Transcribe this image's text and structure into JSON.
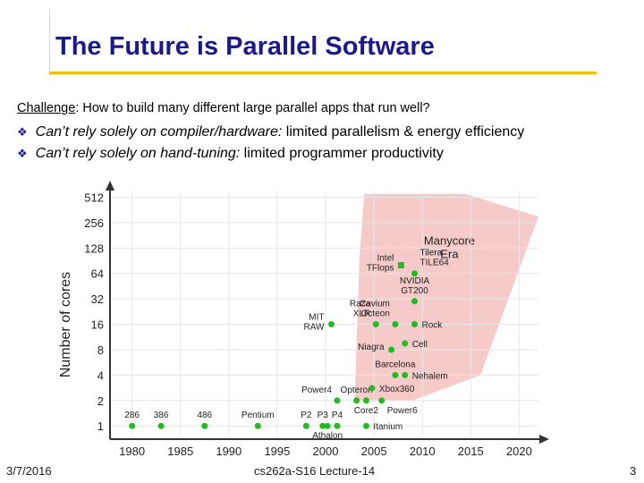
{
  "slide": {
    "title": "The Future is Parallel Software",
    "challenge_label": "Challenge",
    "challenge_text": ": How to build many different large parallel apps that run well?",
    "bullets": [
      {
        "italic": "Can’t rely solely on compiler/hardware:",
        "rest": " limited parallelism & energy efficiency"
      },
      {
        "italic": "Can’t rely solely on hand-tuning:",
        "rest": " limited programmer productivity"
      }
    ],
    "footer_date": "3/7/2016",
    "footer_course": "cs262a-S16 Lecture-14",
    "footer_page": "3"
  },
  "colors": {
    "title": "#1a1a8c",
    "rule": "#f0c000",
    "point": "#22bb22",
    "region": "#f4b8b8"
  },
  "chart_data": {
    "type": "scatter",
    "ylabel": "Number of cores",
    "xlabel": "",
    "y_scale": "log2",
    "xlim": [
      1978,
      2022
    ],
    "ylim": [
      0.75,
      600
    ],
    "xticks": [
      1980,
      1985,
      1990,
      1995,
      2000,
      2005,
      2010,
      2015,
      2020
    ],
    "yticks": [
      1,
      2,
      4,
      8,
      16,
      32,
      64,
      128,
      256,
      512
    ],
    "region_label": [
      "Manycore",
      "Era"
    ],
    "points": [
      {
        "x": 1980,
        "y": 1,
        "labels": [
          "286"
        ],
        "anchor": "above"
      },
      {
        "x": 1983,
        "y": 1,
        "labels": [
          "386"
        ],
        "anchor": "above"
      },
      {
        "x": 1987.5,
        "y": 1,
        "labels": [
          "486"
        ],
        "anchor": "above"
      },
      {
        "x": 1993,
        "y": 1,
        "labels": [
          "Pentium"
        ],
        "anchor": "above"
      },
      {
        "x": 1998,
        "y": 1,
        "labels": [
          "P2"
        ],
        "anchor": "above"
      },
      {
        "x": 1999.7,
        "y": 1,
        "labels": [
          "P3"
        ],
        "anchor": "above"
      },
      {
        "x": 2000.2,
        "y": 1,
        "labels": [
          "Athalon"
        ],
        "anchor": "below"
      },
      {
        "x": 2001.2,
        "y": 1,
        "labels": [
          "P4"
        ],
        "anchor": "above"
      },
      {
        "x": 2004.2,
        "y": 1,
        "labels": [
          "Itanium"
        ],
        "anchor": "right"
      },
      {
        "x": 2001.2,
        "y": 2,
        "labels": [
          "Power4"
        ],
        "anchor": "above-left"
      },
      {
        "x": 2003.2,
        "y": 2,
        "labels": [
          "Opteron"
        ],
        "anchor": "above"
      },
      {
        "x": 2004.2,
        "y": 2,
        "labels": [
          "Core2"
        ],
        "anchor": "below"
      },
      {
        "x": 2005.8,
        "y": 2,
        "labels": [
          "Power6"
        ],
        "anchor": "below-right"
      },
      {
        "x": 2004.8,
        "y": 2.8,
        "labels": [
          "Xbox360"
        ],
        "anchor": "right"
      },
      {
        "x": 2007.2,
        "y": 4,
        "labels": [
          "Barcelona"
        ],
        "anchor": "above"
      },
      {
        "x": 2008.2,
        "y": 4,
        "labels": [
          "Nehalem"
        ],
        "anchor": "right"
      },
      {
        "x": 2006.8,
        "y": 8,
        "labels": [
          "Niagra"
        ],
        "anchor": "left"
      },
      {
        "x": 2008.2,
        "y": 9.5,
        "labels": [
          "Cell"
        ],
        "anchor": "right"
      },
      {
        "x": 2000.6,
        "y": 16,
        "labels": [
          "MIT",
          "RAW"
        ],
        "anchor": "left"
      },
      {
        "x": 2005.2,
        "y": 16,
        "labels": [
          "Raza",
          "XLR"
        ],
        "anchor": "above-left"
      },
      {
        "x": 2007.2,
        "y": 16,
        "labels": [
          "Cavium",
          "Octeon"
        ],
        "anchor": "above-left"
      },
      {
        "x": 2009.2,
        "y": 16,
        "labels": [
          "Rock"
        ],
        "anchor": "right"
      },
      {
        "x": 2009.2,
        "y": 30,
        "labels": [
          "NVIDIA",
          "GT200"
        ],
        "anchor": "above"
      },
      {
        "x": 2007.8,
        "y": 80,
        "labels": [
          "Intel",
          "TFlops"
        ],
        "anchor": "left"
      },
      {
        "x": 2009.2,
        "y": 64,
        "labels": [
          "Tilera",
          "TILE64"
        ],
        "anchor": "above-right"
      }
    ]
  }
}
